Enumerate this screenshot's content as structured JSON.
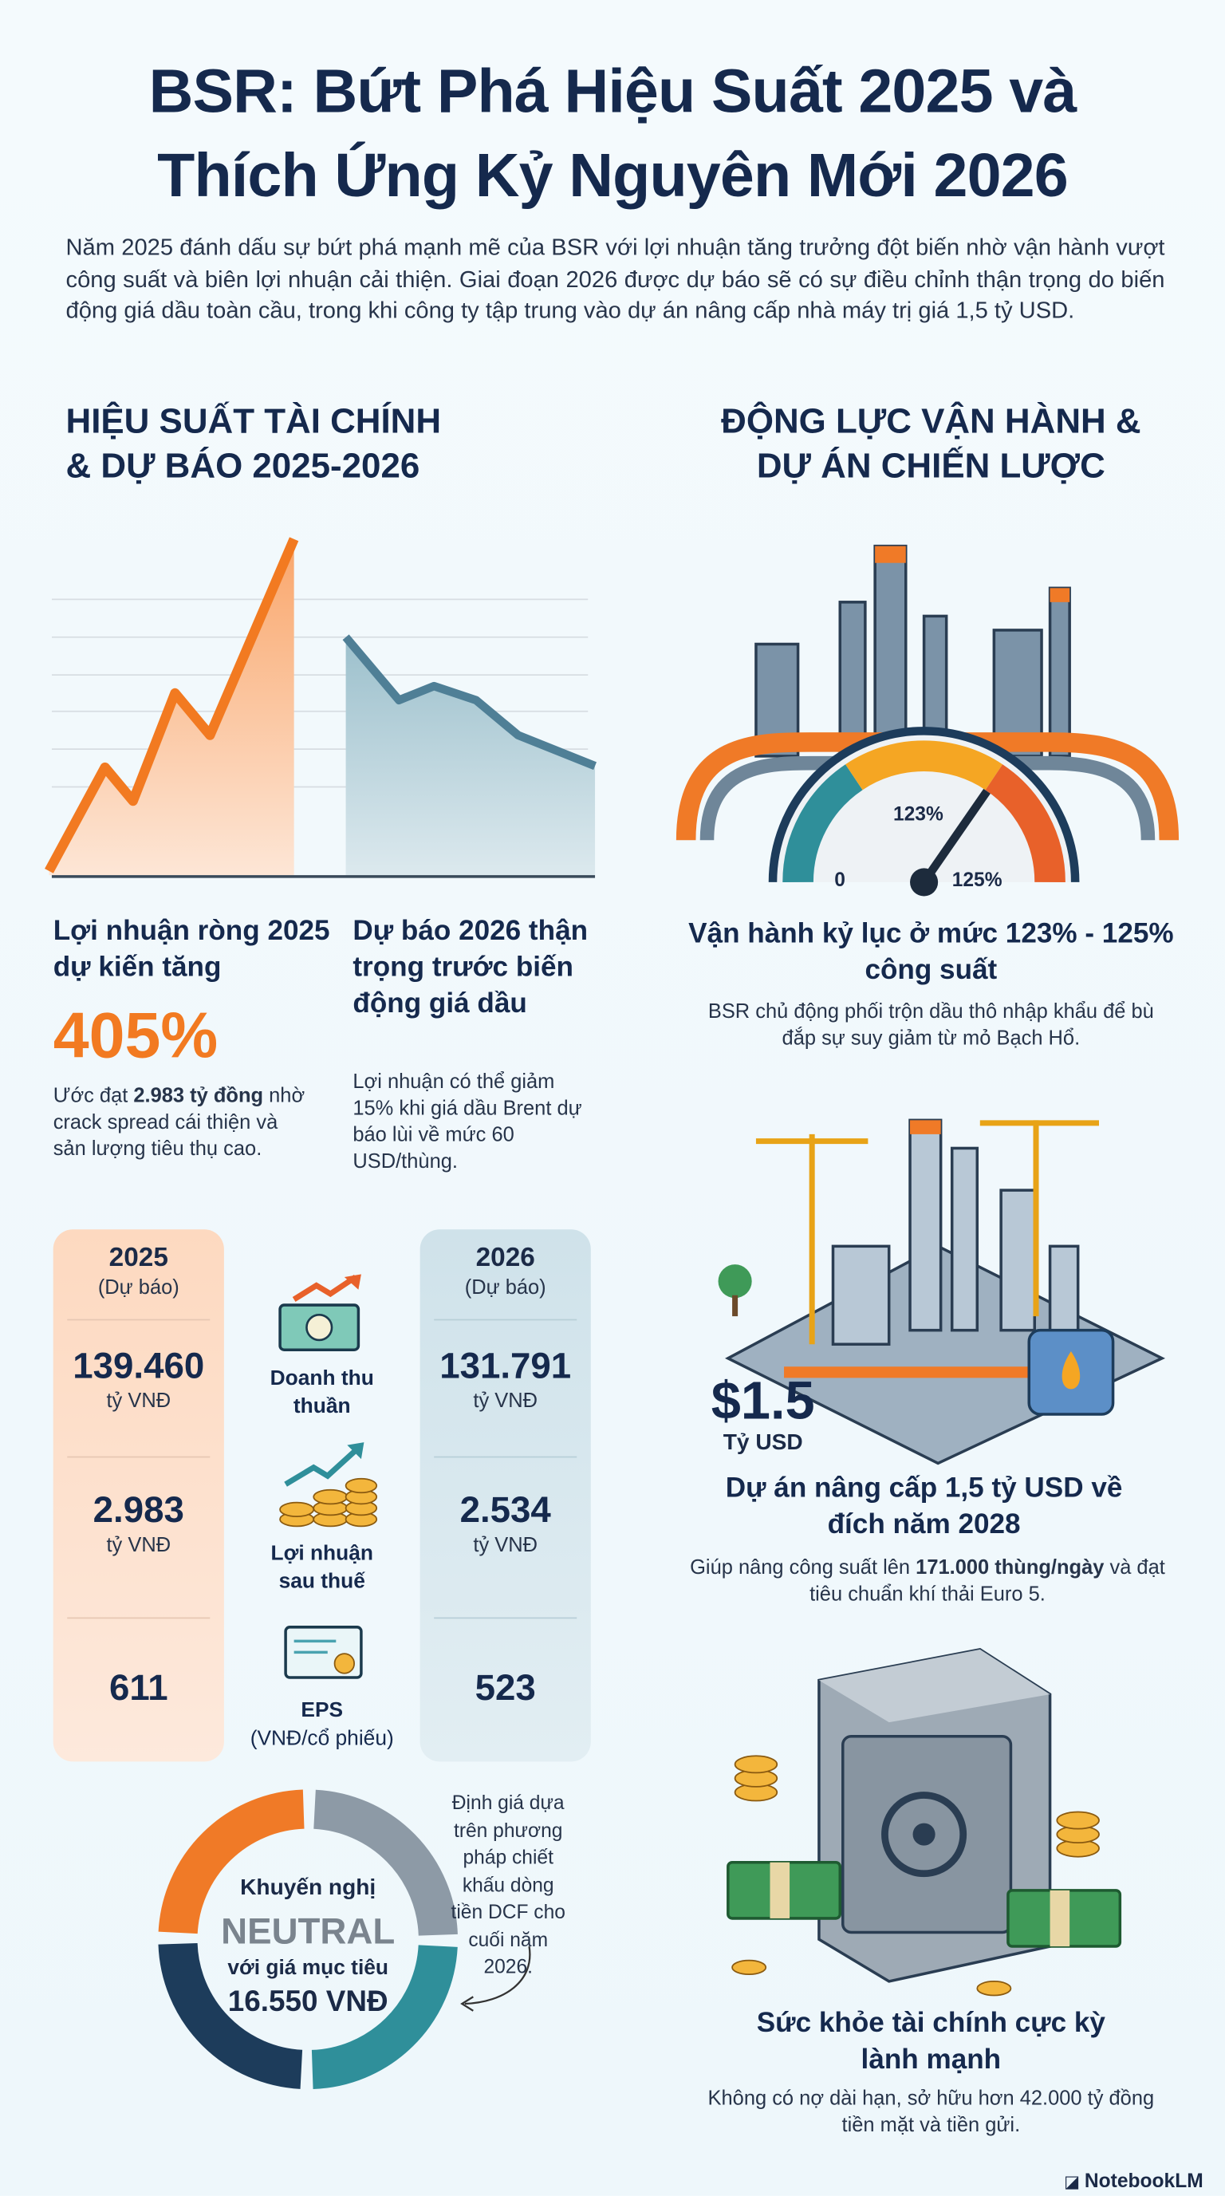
{
  "header": {
    "title_line1": "BSR: Bứt Phá Hiệu Suất 2025 và",
    "title_line2": "Thích Ứng Kỷ Nguyên Mới 2026",
    "intro": "Năm 2025 đánh dấu sự bứt phá mạnh mẽ của BSR với lợi nhuận tăng trưởng đột biến nhờ vận hành vượt công suất và biên lợi nhuận cải thiện. Giai đoạn 2026 được dự báo sẽ có sự điều chỉnh thận trọng do biến động giá dầu toàn cầu, trong khi công ty tập trung vào dự án nâng cấp nhà máy trị giá 1,5 tỷ USD."
  },
  "left": {
    "heading_line1": "HIỆU SUẤT TÀI CHÍNH",
    "heading_line2": "& DỰ BÁO 2025-2026",
    "growth": {
      "title": "Lợi nhuận ròng 2025 dự kiến tăng",
      "figure": "405%",
      "note_prefix": "Ước đạt ",
      "note_bold": "2.983 tỷ đồng",
      "note_suffix": " nhờ crack spread cái thiện và sản lượng tiêu thụ cao."
    },
    "forecast": {
      "title": "Dự báo 2026 thận trọng trước biến động giá dầu",
      "note": "Lợi nhuận có thể giảm 15% khi giá dầu Brent dự báo lùi về mức 60 USD/thùng."
    },
    "table": {
      "year_2025": "2025",
      "tag_2025": "(Dự báo)",
      "year_2026": "2026",
      "tag_2026": "(Dự báo)",
      "rows": [
        {
          "label": "Doanh thu thuần",
          "unit_label": "",
          "v2025": "139.460",
          "u2025": "tỷ VNĐ",
          "v2026": "131.791",
          "u2026": "tỷ VNĐ"
        },
        {
          "label": "Lợi nhuận sau thuế",
          "unit_label": "",
          "v2025": "2.983",
          "u2025": "tỷ VNĐ",
          "v2026": "2.534",
          "u2026": "tỷ VNĐ"
        },
        {
          "label": "EPS",
          "unit_label": "(VNĐ/cổ phiếu)",
          "v2025": "611",
          "u2025": "",
          "v2026": "523",
          "u2026": ""
        }
      ]
    },
    "recommendation": {
      "label": "Khuyến nghị",
      "rating": "NEUTRAL",
      "target_label": "với giá mục tiêu",
      "target": "16.550 VNĐ",
      "note": "Định giá dựa trên phương pháp chiết khấu dòng tiền DCF cho cuối năm 2026."
    }
  },
  "right": {
    "heading_line1": "ĐỘNG LỰC VẬN HÀNH &",
    "heading_line2": "DỰ ÁN CHIẾN LƯỢC",
    "operations": {
      "gauge_min": "0",
      "gauge_mid": "123%",
      "gauge_max": "125%",
      "title": "Vận hành kỷ lục ở mức 123% - 125% công suất",
      "desc": "BSR chủ động phối trộn dầu thô nhập khẩu để bù đắp sự suy giảm từ mỏ Bạch Hổ."
    },
    "project": {
      "amount": "$1.5",
      "amount_unit": "Tỷ USD",
      "title": "Dự án nâng cấp 1,5 tỷ USD về đích năm 2028",
      "desc_prefix": "Giúp nâng công suất lên ",
      "desc_bold": "171.000 thùng/ngày",
      "desc_suffix": " và đạt tiêu chuẩn khí thải Euro 5."
    },
    "finance": {
      "title": "Sức khỏe tài chính cực kỳ lành mạnh",
      "desc": "Không có nợ dài hạn, sở hữu hơn 42.000 tỷ đồng tiền mặt và tiền gửi."
    }
  },
  "footer": {
    "brand": "NotebookLM"
  }
}
